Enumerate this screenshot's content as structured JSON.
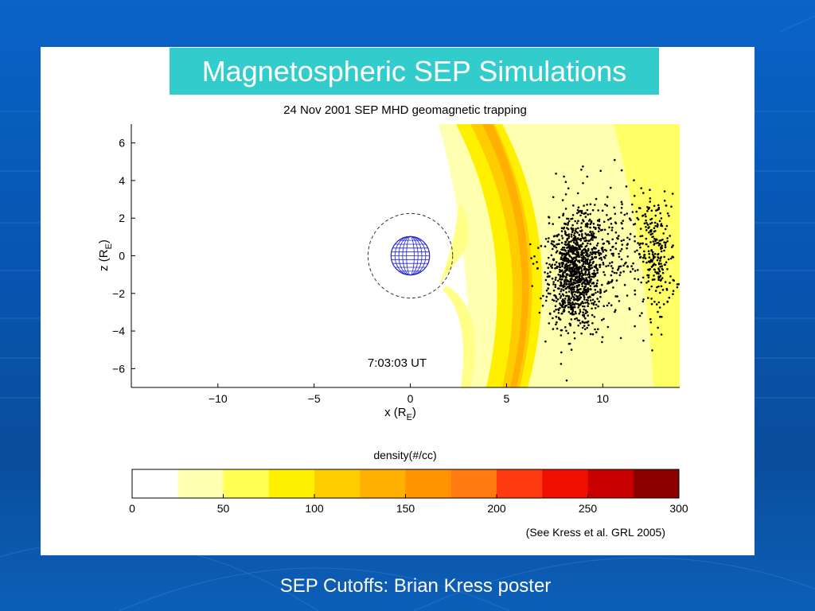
{
  "slide": {
    "title": "Magnetospheric SEP Simulations",
    "footer": "SEP Cutoffs: Brian Kress poster",
    "colors": {
      "background": "#0a58b8",
      "title_box": "#33cccc",
      "panel": "#ffffff"
    }
  },
  "figure": {
    "title": "24 Nov 2001 SEP MHD geomagnetic trapping",
    "timestamp": "7:03:03 UT",
    "xlabel_main": "x (R",
    "xlabel_sub": "E",
    "xlabel_end": ")",
    "ylabel_main": "z (R",
    "ylabel_sub": "E",
    "ylabel_end": ")",
    "colorbar_label": "density(#/cc)",
    "reference": "(See Kress et al. GRL 2005)"
  },
  "chart_data": [
    {
      "type": "heatmap",
      "title": "24 Nov 2001 SEP MHD geomagnetic trapping",
      "xlim": [
        -14.5,
        14
      ],
      "ylim": [
        -7,
        7
      ],
      "x_ticks": [
        -10,
        -5,
        0,
        5,
        10
      ],
      "x_tick_labels": [
        "−10",
        "−5",
        "0",
        "5",
        "10"
      ],
      "y_ticks": [
        6,
        4,
        2,
        0,
        -2,
        -4,
        -6
      ],
      "y_tick_labels": [
        "6",
        "4",
        "2",
        "0",
        "−2",
        "−4",
        "−6"
      ],
      "earth": {
        "center": [
          0,
          0
        ],
        "radius": 1,
        "dashed_circle_radius": 2.2
      },
      "particle_clusters": [
        {
          "center": [
            8.5,
            -1
          ],
          "spread": [
            1.3,
            2.8
          ],
          "count": 850
        },
        {
          "center": [
            12.8,
            0
          ],
          "spread": [
            1.0,
            3.2
          ],
          "count": 240
        },
        {
          "center": [
            9.5,
            0
          ],
          "spread": [
            2.6,
            3.5
          ],
          "count": 450
        }
      ],
      "grid": false
    },
    {
      "type": "colorbar",
      "label": "density(#/cc)",
      "range": [
        0,
        300
      ],
      "ticks": [
        0,
        50,
        100,
        150,
        200,
        250,
        300
      ],
      "bins": [
        0,
        25,
        50,
        75,
        100,
        125,
        150,
        175,
        200,
        225,
        250,
        275,
        300
      ],
      "colors": [
        "#ffffff",
        "#ffffb0",
        "#ffff55",
        "#fff000",
        "#ffcc00",
        "#ffb000",
        "#ff9400",
        "#ff7a10",
        "#ff3a10",
        "#f01000",
        "#c80000",
        "#8c0000"
      ]
    }
  ]
}
